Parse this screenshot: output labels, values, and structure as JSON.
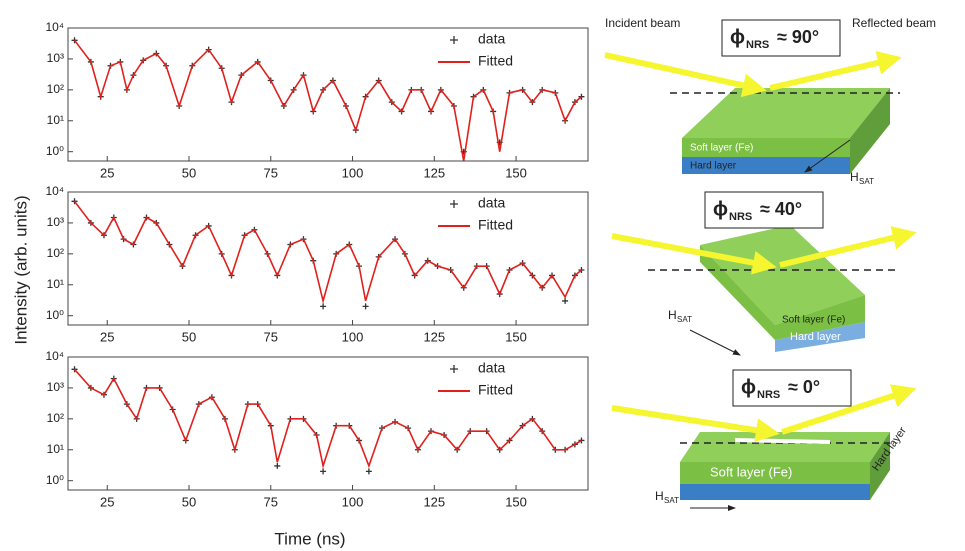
{
  "figure": {
    "ylabel": "Intensity (arb. units)",
    "xlabel": "Time (ns)"
  },
  "chart_data": [
    {
      "type": "line",
      "log_y": true,
      "legend": "upper right",
      "xlim": [
        13,
        172
      ],
      "xticks": [
        25,
        50,
        75,
        100,
        125,
        150
      ],
      "ylim": [
        0.5,
        10000
      ],
      "yticks": [
        {
          "value": 1,
          "label": "10⁰"
        },
        {
          "value": 10,
          "label": "10¹"
        },
        {
          "value": 100,
          "label": "10²"
        },
        {
          "value": 1000,
          "label": "10³"
        },
        {
          "value": 10000,
          "label": "10⁴"
        }
      ],
      "x": [
        15,
        20,
        23,
        26,
        29,
        31,
        33,
        36,
        40,
        43,
        47,
        51,
        56,
        60,
        63,
        66,
        71,
        75,
        79,
        82,
        85,
        88,
        91,
        94,
        98,
        101,
        104,
        108,
        112,
        115,
        118,
        121,
        124,
        127,
        131,
        134,
        137,
        140,
        143,
        145,
        148,
        152,
        155,
        158,
        162,
        165,
        168,
        170
      ],
      "series": [
        {
          "name": "data",
          "color": "#333333",
          "values": [
            4000,
            800,
            60,
            600,
            800,
            100,
            300,
            900,
            1500,
            600,
            30,
            600,
            2000,
            500,
            40,
            300,
            800,
            200,
            30,
            100,
            300,
            20,
            100,
            200,
            30,
            5,
            60,
            200,
            40,
            20,
            100,
            100,
            20,
            100,
            30,
            1,
            60,
            100,
            20,
            2,
            80,
            100,
            40,
            100,
            80,
            10,
            40,
            60
          ]
        },
        {
          "name": "Fitted",
          "color": "#e0201c",
          "values": [
            4000,
            800,
            60,
            600,
            800,
            100,
            300,
            900,
            1500,
            600,
            30,
            600,
            2000,
            500,
            40,
            300,
            800,
            200,
            30,
            100,
            300,
            20,
            100,
            200,
            30,
            5,
            60,
            200,
            40,
            20,
            100,
            100,
            20,
            100,
            30,
            0.5,
            60,
            100,
            20,
            1,
            80,
            100,
            40,
            100,
            80,
            10,
            40,
            60
          ]
        }
      ]
    },
    {
      "type": "line",
      "log_y": true,
      "legend": "upper right",
      "xlim": [
        13,
        172
      ],
      "xticks": [
        25,
        50,
        75,
        100,
        125,
        150
      ],
      "ylim": [
        0.5,
        10000
      ],
      "yticks": [
        {
          "value": 1,
          "label": "10⁰"
        },
        {
          "value": 10,
          "label": "10¹"
        },
        {
          "value": 100,
          "label": "10²"
        },
        {
          "value": 1000,
          "label": "10³"
        },
        {
          "value": 10000,
          "label": "10⁴"
        }
      ],
      "x": [
        15,
        20,
        24,
        27,
        30,
        33,
        37,
        40,
        44,
        48,
        52,
        56,
        60,
        63,
        67,
        70,
        74,
        77,
        81,
        85,
        88,
        91,
        95,
        99,
        102,
        104,
        108,
        113,
        116,
        119,
        123,
        126,
        130,
        134,
        138,
        141,
        145,
        148,
        152,
        155,
        158,
        161,
        165,
        168,
        170
      ],
      "series": [
        {
          "name": "data",
          "color": "#333333",
          "values": [
            5000,
            1000,
            400,
            1500,
            300,
            200,
            1500,
            1000,
            200,
            40,
            400,
            800,
            100,
            20,
            400,
            600,
            100,
            20,
            200,
            300,
            60,
            2,
            100,
            200,
            40,
            2,
            80,
            300,
            100,
            20,
            60,
            40,
            30,
            8,
            40,
            40,
            5,
            30,
            50,
            20,
            8,
            20,
            3,
            20,
            30
          ]
        },
        {
          "name": "Fitted",
          "color": "#e0201c",
          "values": [
            5000,
            1000,
            400,
            1500,
            300,
            200,
            1500,
            1000,
            200,
            40,
            400,
            800,
            100,
            20,
            400,
            600,
            100,
            20,
            200,
            300,
            60,
            3,
            100,
            200,
            40,
            3,
            80,
            300,
            100,
            20,
            60,
            40,
            30,
            8,
            40,
            40,
            5,
            30,
            50,
            20,
            8,
            20,
            4,
            20,
            30
          ]
        }
      ]
    },
    {
      "type": "line",
      "log_y": true,
      "legend": "upper right",
      "xlim": [
        13,
        172
      ],
      "xticks": [
        25,
        50,
        75,
        100,
        125,
        150
      ],
      "ylim": [
        0.5,
        10000
      ],
      "yticks": [
        {
          "value": 1,
          "label": "10⁰"
        },
        {
          "value": 10,
          "label": "10¹"
        },
        {
          "value": 100,
          "label": "10²"
        },
        {
          "value": 1000,
          "label": "10³"
        },
        {
          "value": 10000,
          "label": "10⁴"
        }
      ],
      "x": [
        15,
        20,
        24,
        27,
        31,
        34,
        37,
        41,
        45,
        49,
        53,
        57,
        61,
        64,
        68,
        71,
        75,
        77,
        81,
        85,
        89,
        91,
        95,
        99,
        102,
        105,
        109,
        113,
        117,
        120,
        124,
        128,
        132,
        136,
        141,
        145,
        148,
        152,
        155,
        158,
        162,
        165,
        168,
        170
      ],
      "series": [
        {
          "name": "data",
          "color": "#333333",
          "values": [
            4000,
            1000,
            600,
            2000,
            300,
            100,
            1000,
            1000,
            200,
            20,
            300,
            500,
            100,
            10,
            300,
            300,
            60,
            3,
            100,
            100,
            30,
            2,
            60,
            60,
            20,
            2,
            50,
            80,
            50,
            10,
            40,
            30,
            10,
            40,
            40,
            10,
            20,
            60,
            100,
            40,
            10,
            10,
            15,
            20
          ]
        },
        {
          "name": "Fitted",
          "color": "#e0201c",
          "values": [
            4000,
            1000,
            600,
            2000,
            300,
            100,
            1000,
            1000,
            200,
            20,
            300,
            500,
            100,
            10,
            300,
            300,
            60,
            4,
            100,
            100,
            30,
            3,
            60,
            60,
            20,
            3,
            50,
            80,
            50,
            10,
            40,
            30,
            10,
            40,
            40,
            10,
            20,
            60,
            100,
            40,
            10,
            10,
            15,
            20
          ]
        }
      ]
    }
  ],
  "diagram": {
    "incident": "Incident beam",
    "reflected": "Reflected beam",
    "panels": [
      {
        "phi": "ϕ",
        "sub": "NRS",
        "angle": "≈ 90°",
        "soft": "Soft layer (Fe)",
        "hard": "Hard layer",
        "h": "H",
        "h_sub": "SAT"
      },
      {
        "phi": "ϕ",
        "sub": "NRS",
        "angle": "≈ 40°",
        "soft": "Soft layer (Fe)",
        "hard": "Hard layer",
        "h": "H",
        "h_sub": "SAT"
      },
      {
        "phi": "ϕ",
        "sub": "NRS",
        "angle": "≈ 0°",
        "soft": "Soft layer (Fe)",
        "hard": "Hard layer",
        "h": "H",
        "h_sub": "SAT"
      }
    ]
  }
}
